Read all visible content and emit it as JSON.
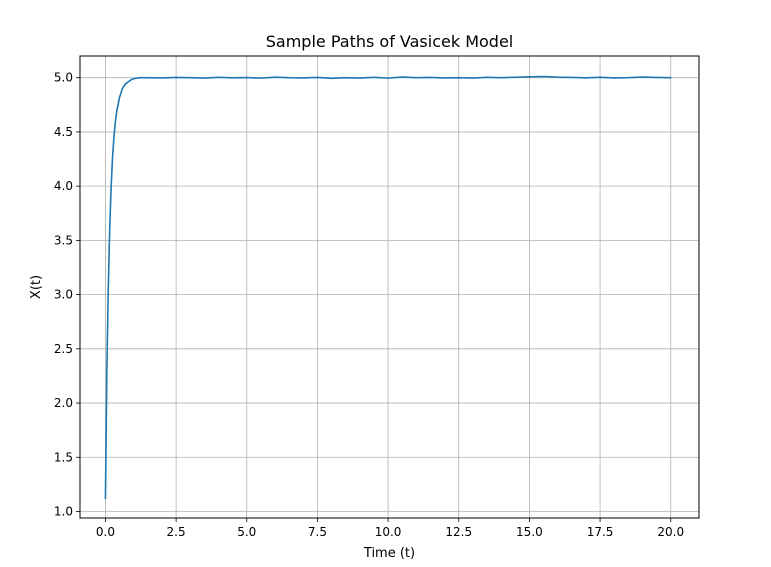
{
  "chart_data": {
    "type": "line",
    "title": "Sample Paths of Vasicek Model",
    "xlabel": "Time (t)",
    "ylabel": "X(t)",
    "xlim": [
      -0.9,
      21.0
    ],
    "ylim": [
      0.94,
      5.2
    ],
    "xticks": [
      0.0,
      2.5,
      5.0,
      7.5,
      10.0,
      12.5,
      15.0,
      17.5,
      20.0
    ],
    "xtick_labels": [
      "0.0",
      "2.5",
      "5.0",
      "7.5",
      "10.0",
      "12.5",
      "15.0",
      "17.5",
      "20.0"
    ],
    "yticks": [
      1.0,
      1.5,
      2.0,
      2.5,
      3.0,
      3.5,
      4.0,
      4.5,
      5.0
    ],
    "ytick_labels": [
      "1.0",
      "1.5",
      "2.0",
      "2.5",
      "3.0",
      "3.5",
      "4.0",
      "4.5",
      "5.0"
    ],
    "grid": true,
    "legend": "none",
    "colors": {
      "line": "#1f77b4",
      "grid": "#b0b0b0",
      "axes": "#000000"
    },
    "series": [
      {
        "x": [
          0.0,
          0.05,
          0.1,
          0.15,
          0.2,
          0.25,
          0.3,
          0.35,
          0.4,
          0.5,
          0.6,
          0.7,
          0.8,
          0.9,
          1.0,
          1.1,
          1.2,
          1.3,
          1.5,
          2.0,
          2.5,
          3.0,
          3.5,
          4.0,
          4.5,
          5.0,
          5.5,
          6.0,
          6.5,
          7.0,
          7.5,
          8.0,
          8.5,
          9.0,
          9.5,
          10.0,
          10.5,
          11.0,
          11.5,
          12.0,
          12.5,
          13.0,
          13.5,
          14.0,
          14.5,
          15.0,
          15.5,
          16.0,
          16.5,
          17.0,
          17.5,
          18.0,
          18.5,
          19.0,
          19.5,
          20.0
        ],
        "y": [
          1.12,
          2.3,
          3.05,
          3.6,
          3.98,
          4.26,
          4.45,
          4.59,
          4.69,
          4.82,
          4.9,
          4.94,
          4.96,
          4.98,
          4.99,
          4.995,
          5.0,
          5.0,
          5.0,
          4.998,
          5.002,
          5.0,
          4.997,
          5.003,
          4.999,
          5.001,
          4.996,
          5.005,
          5.0,
          4.998,
          5.002,
          4.994,
          5.0,
          4.997,
          5.003,
          4.996,
          5.006,
          5.0,
          5.002,
          4.998,
          5.0,
          4.997,
          5.003,
          5.0,
          5.004,
          5.008,
          5.011,
          5.005,
          5.002,
          4.999,
          5.003,
          4.998,
          5.0,
          5.006,
          5.002,
          5.0
        ]
      }
    ]
  }
}
